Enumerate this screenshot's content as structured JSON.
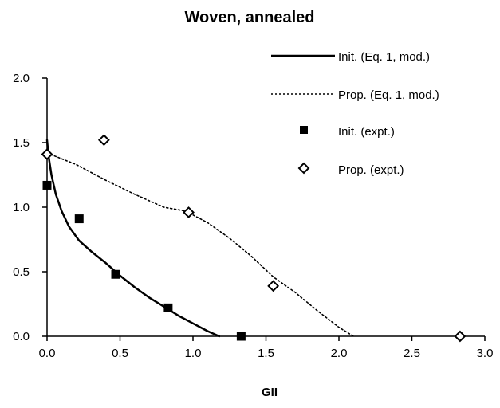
{
  "chart_data": {
    "type": "scatter",
    "title": "Woven, annealed",
    "xlabel": "GII",
    "ylabel": "",
    "xlim": [
      0,
      3
    ],
    "ylim": [
      0,
      2
    ],
    "xticks": [
      "0.0",
      "0.5",
      "1.0",
      "1.5",
      "2.0",
      "2.5",
      "3.0"
    ],
    "yticks": [
      "0.0",
      "0.5",
      "1.0",
      "1.5",
      "2.0"
    ],
    "grid": false,
    "legend_position": "top-right",
    "series": [
      {
        "name": "Init. (Eq. 1, mod.)",
        "kind": "line",
        "style": "solid",
        "color": "#000000",
        "points": [
          [
            0.0,
            1.52
          ],
          [
            0.01,
            1.4
          ],
          [
            0.03,
            1.25
          ],
          [
            0.06,
            1.1
          ],
          [
            0.1,
            0.97
          ],
          [
            0.15,
            0.85
          ],
          [
            0.22,
            0.74
          ],
          [
            0.3,
            0.66
          ],
          [
            0.4,
            0.57
          ],
          [
            0.5,
            0.47
          ],
          [
            0.6,
            0.38
          ],
          [
            0.7,
            0.3
          ],
          [
            0.8,
            0.23
          ],
          [
            0.9,
            0.16
          ],
          [
            1.0,
            0.1
          ],
          [
            1.1,
            0.04
          ],
          [
            1.18,
            0.0
          ]
        ]
      },
      {
        "name": "Prop. (Eq. 1, mod.)",
        "kind": "line",
        "style": "dotted",
        "color": "#000000",
        "points": [
          [
            0.0,
            1.42
          ],
          [
            0.2,
            1.33
          ],
          [
            0.4,
            1.21
          ],
          [
            0.6,
            1.1
          ],
          [
            0.8,
            1.0
          ],
          [
            0.95,
            0.97
          ],
          [
            1.1,
            0.88
          ],
          [
            1.25,
            0.76
          ],
          [
            1.4,
            0.62
          ],
          [
            1.55,
            0.46
          ],
          [
            1.7,
            0.34
          ],
          [
            1.85,
            0.2
          ],
          [
            2.0,
            0.07
          ],
          [
            2.1,
            0.0
          ]
        ]
      },
      {
        "name": "Init. (expt.)",
        "kind": "marker",
        "marker": "square",
        "color": "#000000",
        "points": [
          [
            0.0,
            1.17
          ],
          [
            0.22,
            0.91
          ],
          [
            0.47,
            0.48
          ],
          [
            0.83,
            0.22
          ],
          [
            1.33,
            0.0
          ]
        ]
      },
      {
        "name": "Prop. (expt.)",
        "kind": "marker",
        "marker": "diamond",
        "color": "#000000",
        "points": [
          [
            0.0,
            1.41
          ],
          [
            0.39,
            1.52
          ],
          [
            0.97,
            0.96
          ],
          [
            1.55,
            0.39
          ],
          [
            2.83,
            0.0
          ]
        ]
      }
    ]
  }
}
